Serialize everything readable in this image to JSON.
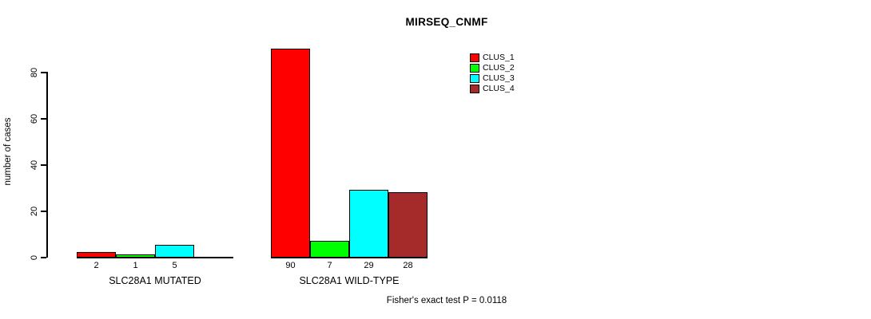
{
  "title": "MIRSEQ_CNMF",
  "footer": "Fisher's exact test P = 0.0118",
  "chart_data": {
    "type": "bar",
    "title": "MIRSEQ_CNMF",
    "xlabel": "",
    "ylabel": "number of cases",
    "ylim": [
      0,
      90
    ],
    "yticks": [
      0,
      20,
      40,
      60,
      80
    ],
    "grid": false,
    "legend_position": "top-right",
    "groups": [
      "SLC28A1 MUTATED",
      "SLC28A1 WILD-TYPE"
    ],
    "series": [
      {
        "name": "CLUS_1",
        "color": "#FF0000",
        "values": [
          2,
          90
        ]
      },
      {
        "name": "CLUS_2",
        "color": "#00FF00",
        "values": [
          1,
          7
        ]
      },
      {
        "name": "CLUS_3",
        "color": "#00FFFF",
        "values": [
          5,
          29
        ]
      },
      {
        "name": "CLUS_4",
        "color": "#A52A2A",
        "values": [
          0,
          28
        ]
      }
    ],
    "bar_labels": [
      [
        "2",
        "1",
        "5",
        ""
      ],
      [
        "90",
        "7",
        "29",
        "28"
      ]
    ],
    "annotation": "Fisher's exact test P = 0.0118"
  }
}
